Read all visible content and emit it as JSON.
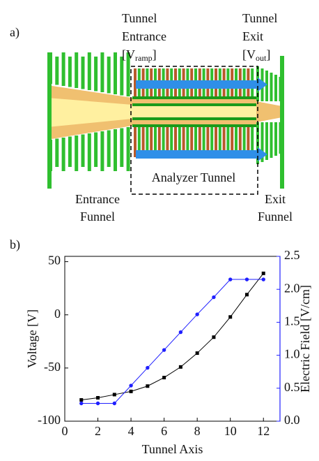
{
  "panel_a": {
    "label": "a)",
    "tunnel_entrance": {
      "lines": [
        "Tunnel",
        "Entrance"
      ],
      "symbol": "[V",
      "subscript": "ramp",
      "close": "]"
    },
    "tunnel_exit": {
      "lines": [
        "Tunnel",
        "Exit"
      ],
      "symbol": "[V",
      "subscript": "out",
      "close": "]"
    },
    "analyzer": "Analyzer Tunnel",
    "entrance_funnel": [
      "Entrance",
      "Funnel"
    ],
    "exit_funnel": [
      "Exit",
      "Funnel"
    ]
  },
  "chart_data": {
    "type": "line",
    "label": "b)",
    "x_label": "Tunnel Axis",
    "y_label": "Voltage [V]",
    "y2_label": "Electric Field [V/cm]",
    "x": [
      1,
      2,
      3,
      4,
      5,
      6,
      7,
      8,
      9,
      10,
      11,
      12
    ],
    "series": [
      {
        "color": "#000000",
        "marker": "square",
        "axis": "y",
        "values": [
          -80,
          -78,
          -75,
          -72,
          -67,
          -59,
          -49,
          -36,
          -21,
          -2,
          19,
          39
        ]
      },
      {
        "color": "#1f1fff",
        "marker": "circle",
        "axis": "y2",
        "values": [
          0.27,
          0.27,
          0.27,
          0.54,
          0.81,
          1.08,
          1.35,
          1.62,
          1.88,
          2.15,
          2.15,
          2.15
        ]
      }
    ],
    "xlim": [
      0,
      13
    ],
    "xticks": [
      0,
      2,
      4,
      6,
      8,
      10,
      12
    ],
    "ylim": [
      -100,
      55
    ],
    "yticks": [
      -100,
      -50,
      0,
      50
    ],
    "y2lim": [
      0,
      2.5
    ],
    "y2ticks": [
      {
        "value": 0,
        "label": "0.0"
      },
      {
        "value": 0.5,
        "label": "0.5"
      },
      {
        "value": 1,
        "label": "1.0"
      },
      {
        "value": 1.5,
        "label": "1.5"
      },
      {
        "value": 2,
        "label": "2.0"
      },
      {
        "value": 2.5,
        "label": "2.5"
      }
    ],
    "y2color": "#1f1fff"
  }
}
